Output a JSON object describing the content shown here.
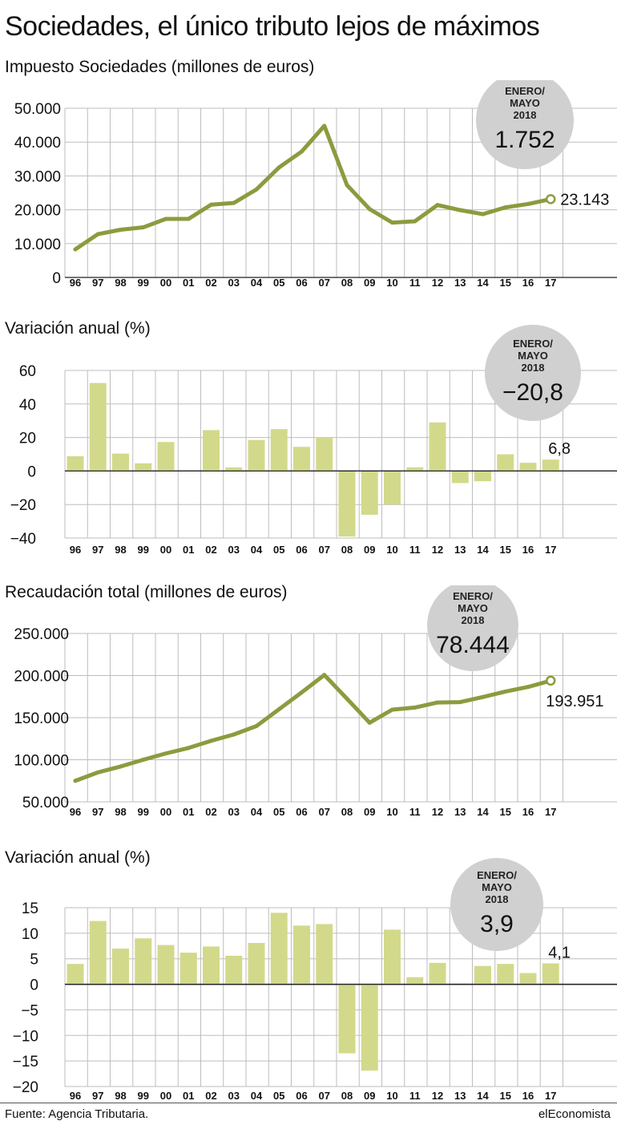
{
  "title": "Sociedades, el único tributo lejos de máximos",
  "source": "Fuente: Agencia Tributaria.",
  "brand": "elEconomista",
  "colors": {
    "line": "#8c9b3e",
    "bar": "#d3d98a",
    "bubble": "#d0d0d0"
  },
  "chart_data": [
    {
      "type": "line",
      "title": "Impuesto Sociedades (millones de euros)",
      "categories": [
        "96",
        "97",
        "98",
        "99",
        "00",
        "01",
        "02",
        "03",
        "04",
        "05",
        "06",
        "07",
        "08",
        "09",
        "10",
        "11",
        "12",
        "13",
        "14",
        "15",
        "16",
        "17"
      ],
      "values": [
        8300,
        12800,
        14100,
        14800,
        17300,
        17300,
        21500,
        22000,
        26000,
        32500,
        37200,
        44800,
        27300,
        20200,
        16200,
        16600,
        21400,
        19900,
        18700,
        20700,
        21700,
        23143
      ],
      "ylim": [
        0,
        50000
      ],
      "yticks": [
        "50.000",
        "40.000",
        "30.000",
        "20.000",
        "10.000",
        "0"
      ],
      "ytick_values": [
        50000,
        40000,
        30000,
        20000,
        10000,
        0
      ],
      "end_label": "23.143",
      "bubble": {
        "line1": "ENERO/",
        "line2": "MAYO",
        "line3": "2018",
        "value": "1.752"
      }
    },
    {
      "type": "bar",
      "title": "Variación anual (%)",
      "categories": [
        "96",
        "97",
        "98",
        "99",
        "00",
        "01",
        "02",
        "03",
        "04",
        "05",
        "06",
        "07",
        "08",
        "09",
        "10",
        "11",
        "12",
        "13",
        "14",
        "15",
        "16",
        "17"
      ],
      "values": [
        8.8,
        52.5,
        10.4,
        4.6,
        17.3,
        0,
        24.4,
        2.1,
        18.5,
        25,
        14.4,
        20.3,
        -39.1,
        -26.1,
        -19.9,
        2.2,
        29,
        -7.2,
        -6.1,
        10,
        4.9,
        6.8
      ],
      "ylim": [
        -40,
        60
      ],
      "yticks": [
        "60",
        "40",
        "20",
        "0",
        "−20",
        "−40"
      ],
      "ytick_values": [
        60,
        40,
        20,
        0,
        -20,
        -40
      ],
      "end_label": "6,8",
      "bubble": {
        "line1": "ENERO/",
        "line2": "MAYO",
        "line3": "2018",
        "value": "−20,8"
      }
    },
    {
      "type": "line",
      "title": "Recaudación total (millones de euros)",
      "categories": [
        "96",
        "97",
        "98",
        "99",
        "00",
        "01",
        "02",
        "03",
        "04",
        "05",
        "06",
        "07",
        "08",
        "09",
        "10",
        "11",
        "12",
        "13",
        "14",
        "15",
        "16",
        "17"
      ],
      "values": [
        75000,
        85000,
        92000,
        100000,
        107500,
        114000,
        122500,
        130000,
        140000,
        160000,
        180000,
        200700,
        172500,
        144000,
        159500,
        162000,
        168000,
        168500,
        174500,
        181000,
        186500,
        193951
      ],
      "ylim": [
        50000,
        250000
      ],
      "yticks": [
        "250.000",
        "200.000",
        "150.000",
        "100.000",
        "50.000"
      ],
      "ytick_values": [
        250000,
        200000,
        150000,
        100000,
        50000
      ],
      "end_label": "193.951",
      "bubble": {
        "line1": "ENERO/",
        "line2": "MAYO",
        "line3": "2018",
        "value": "78.444"
      }
    },
    {
      "type": "bar",
      "title": "Variación anual (%)",
      "categories": [
        "96",
        "97",
        "98",
        "99",
        "00",
        "01",
        "02",
        "03",
        "04",
        "05",
        "06",
        "07",
        "08",
        "09",
        "10",
        "11",
        "12",
        "13",
        "14",
        "15",
        "16",
        "17"
      ],
      "values": [
        4,
        12.4,
        7,
        9,
        7.7,
        6.2,
        7.4,
        5.6,
        8.1,
        14,
        11.5,
        11.8,
        -13.5,
        -16.9,
        10.7,
        1.4,
        4.2,
        0.2,
        3.6,
        4,
        2.2,
        4.1
      ],
      "ylim": [
        -20,
        15
      ],
      "yticks": [
        "15",
        "10",
        "5",
        "0",
        "−5",
        "−10",
        "−15",
        "−20"
      ],
      "ytick_values": [
        15,
        10,
        5,
        0,
        -5,
        -10,
        -15,
        -20
      ],
      "end_label": "4,1",
      "bubble": {
        "line1": "ENERO/",
        "line2": "MAYO",
        "line3": "2018",
        "value": "3,9"
      }
    }
  ]
}
